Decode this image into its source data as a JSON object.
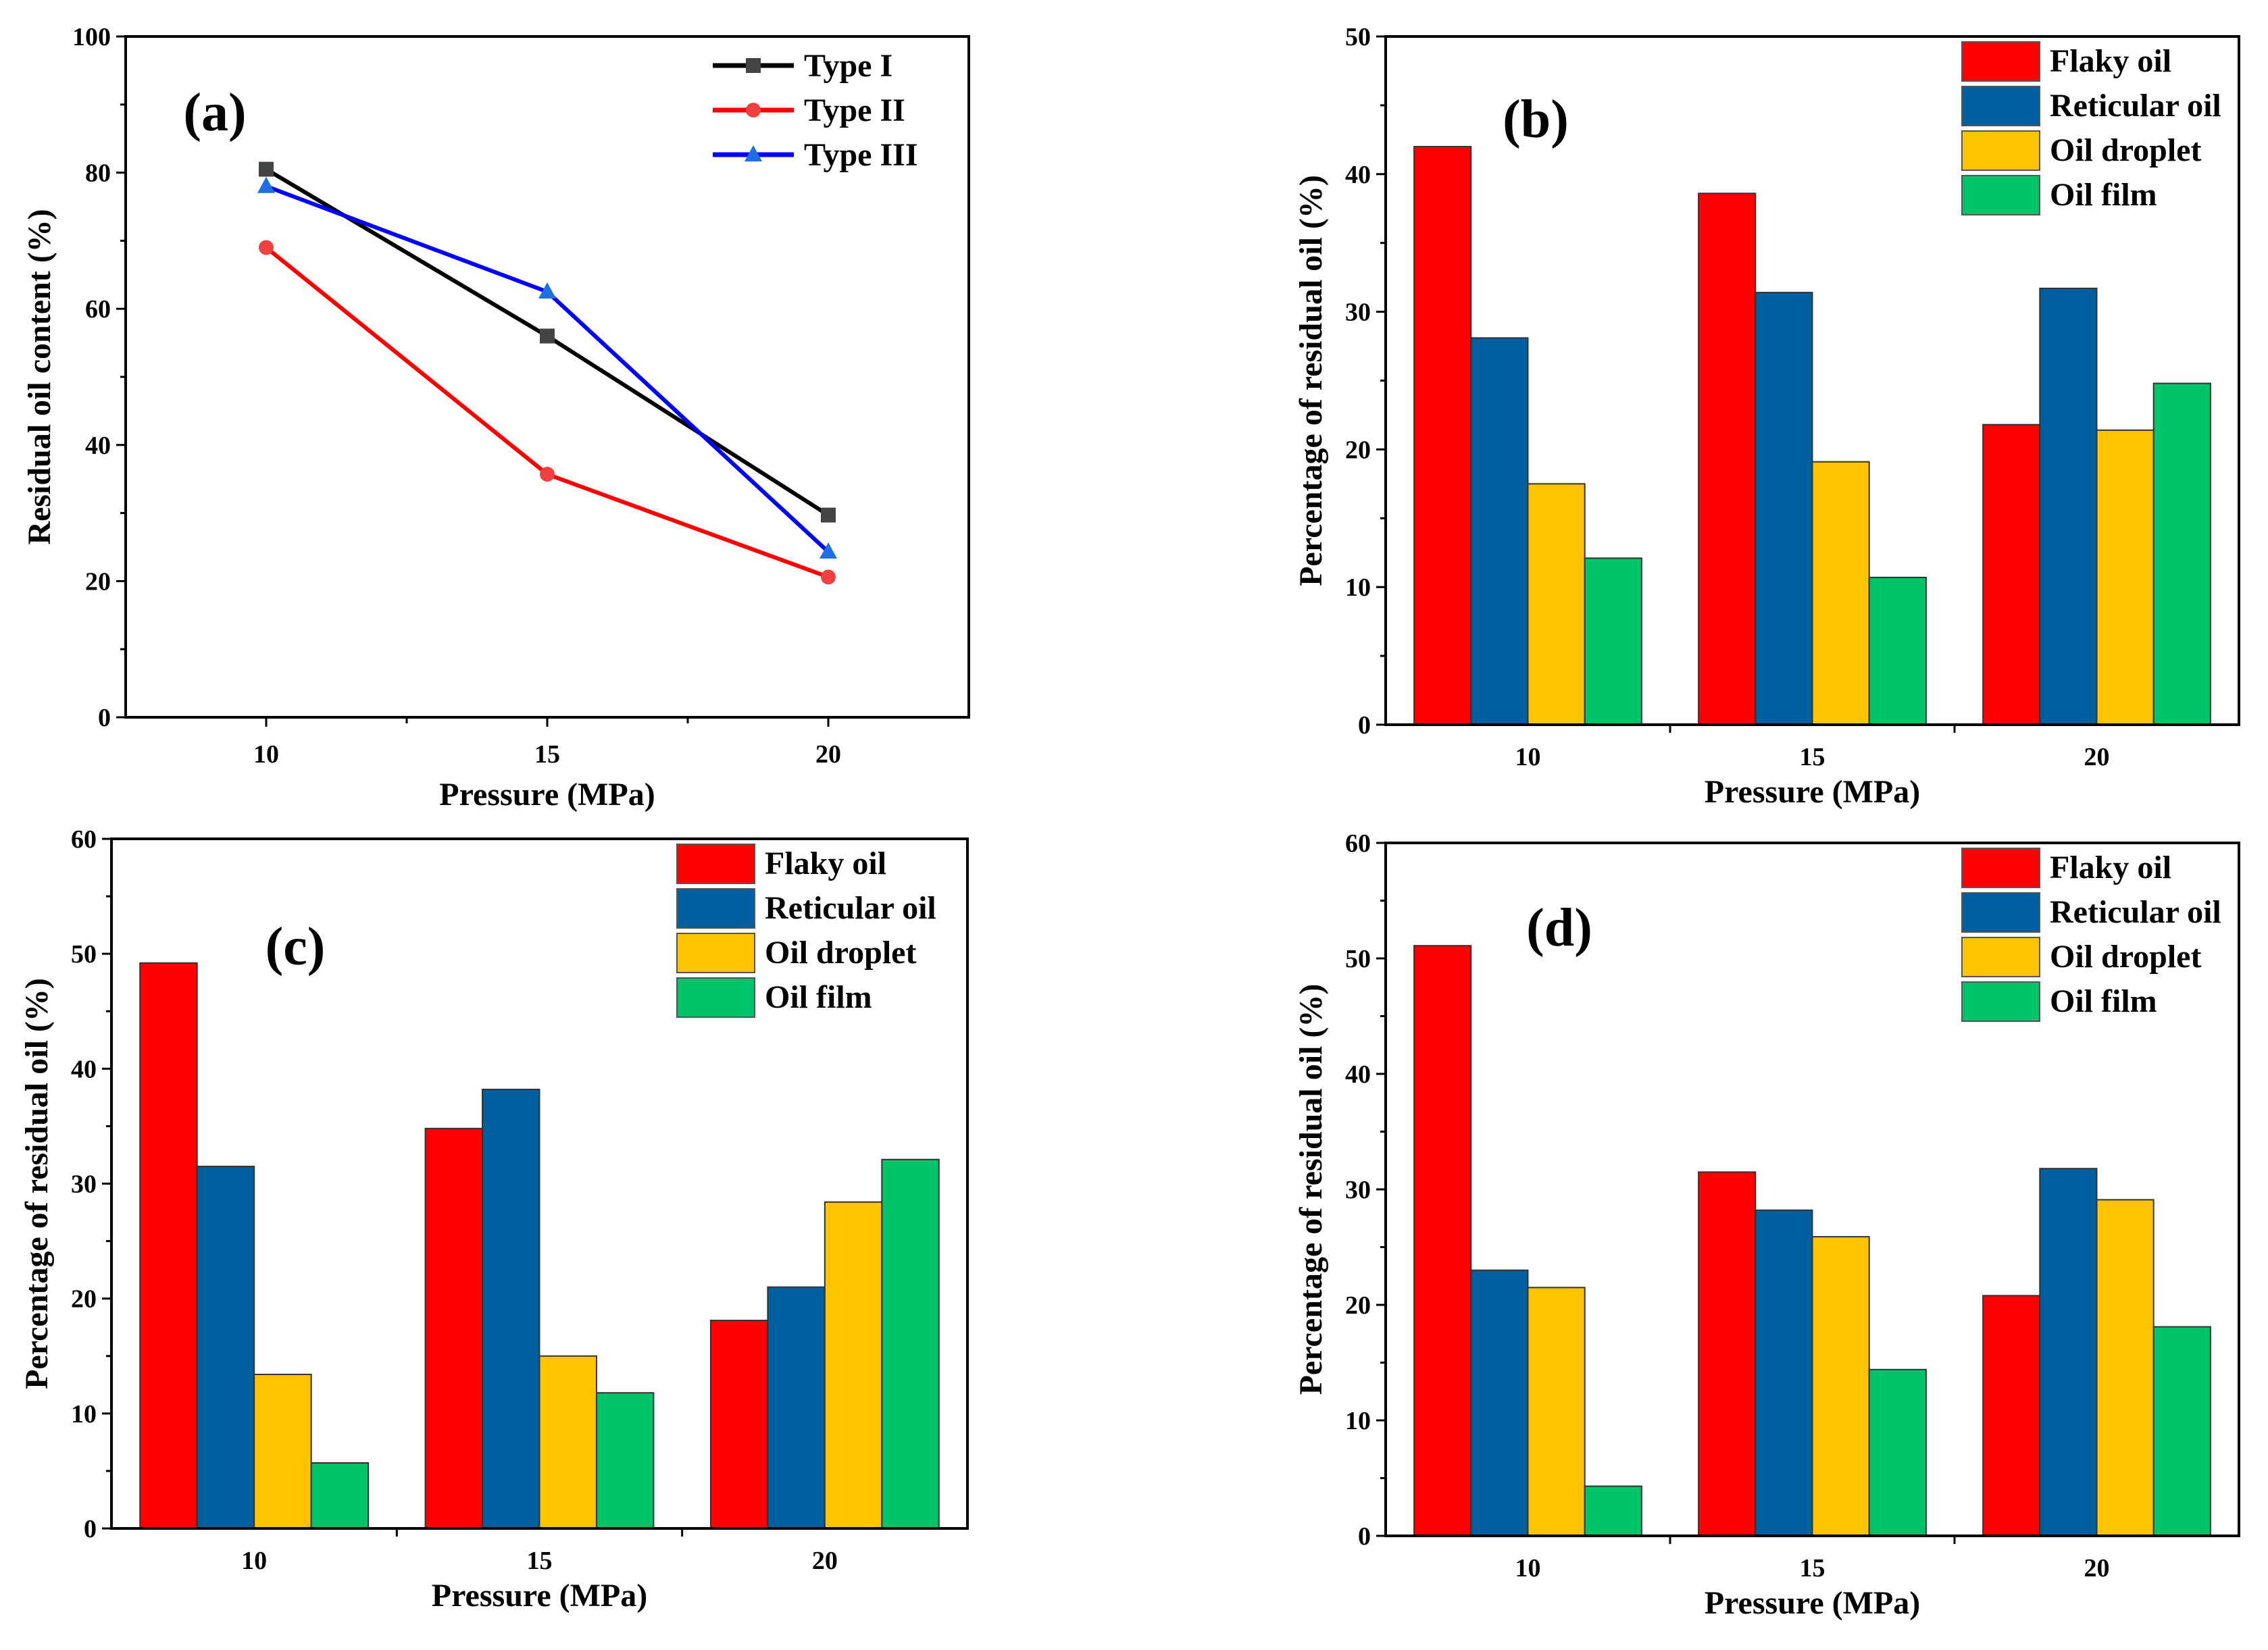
{
  "colors": {
    "type1": "#000000",
    "type1_marker": "#444444",
    "type2": "#ff0000",
    "type2_marker": "#f04040",
    "type3": "#0000ff",
    "type3_marker": "#1f6fe0",
    "flaky": "#ff0000",
    "reticular": "#005f9f",
    "droplet": "#ffc400",
    "film": "#00c46a"
  },
  "chart_data": [
    {
      "panel_label": "(a)",
      "type": "line",
      "xlabel": "Pressure (MPa)",
      "ylabel": "Residual oil content (%)",
      "x": [
        10,
        15,
        20
      ],
      "xlim": [
        7.5,
        22.5
      ],
      "ylim": [
        0,
        100
      ],
      "xticks": [
        10,
        15,
        20
      ],
      "yticks": [
        0,
        20,
        40,
        60,
        80,
        100
      ],
      "legend_position": "top-right",
      "grid": false,
      "series": [
        {
          "name": "Type I",
          "marker": "square",
          "color_key": "type1",
          "values": [
            80.5,
            56.0,
            29.7
          ]
        },
        {
          "name": "Type II",
          "marker": "circle",
          "color_key": "type2",
          "values": [
            69.0,
            35.7,
            20.6
          ]
        },
        {
          "name": "Type III",
          "marker": "triangle",
          "color_key": "type3",
          "values": [
            78.0,
            62.5,
            24.3
          ]
        }
      ]
    },
    {
      "panel_label": "(b)",
      "type": "bar",
      "xlabel": "Pressure (MPa)",
      "ylabel": "Percentage of residual oil (%)",
      "categories": [
        "10",
        "15",
        "20"
      ],
      "ylim": [
        0,
        50
      ],
      "yticks": [
        0,
        10,
        20,
        30,
        40,
        50
      ],
      "legend_position": "top-right",
      "grid": false,
      "series": [
        {
          "name": "Flaky oil",
          "color_key": "flaky",
          "values": [
            42.0,
            38.6,
            21.8
          ]
        },
        {
          "name": "Reticular oil",
          "color_key": "reticular",
          "values": [
            28.1,
            31.4,
            31.7
          ]
        },
        {
          "name": "Oil droplet",
          "color_key": "droplet",
          "values": [
            17.5,
            19.1,
            21.4
          ]
        },
        {
          "name": "Oil film",
          "color_key": "film",
          "values": [
            12.1,
            10.7,
            24.8
          ]
        }
      ]
    },
    {
      "panel_label": "(c)",
      "type": "bar",
      "xlabel": "Pressure (MPa)",
      "ylabel": "Percentage of residual oil (%)",
      "categories": [
        "10",
        "15",
        "20"
      ],
      "ylim": [
        0,
        60
      ],
      "yticks": [
        0,
        10,
        20,
        30,
        40,
        50,
        60
      ],
      "legend_position": "top-right",
      "grid": false,
      "series": [
        {
          "name": "Flaky oil",
          "color_key": "flaky",
          "values": [
            49.2,
            34.8,
            18.1
          ]
        },
        {
          "name": "Reticular oil",
          "color_key": "reticular",
          "values": [
            31.5,
            38.2,
            21.0
          ]
        },
        {
          "name": "Oil droplet",
          "color_key": "droplet",
          "values": [
            13.4,
            15.0,
            28.4
          ]
        },
        {
          "name": "Oil film",
          "color_key": "film",
          "values": [
            5.7,
            11.8,
            32.1
          ]
        }
      ]
    },
    {
      "panel_label": "(d)",
      "type": "bar",
      "xlabel": "Pressure (MPa)",
      "ylabel": "Percentage of residual oil (%)",
      "categories": [
        "10",
        "15",
        "20"
      ],
      "ylim": [
        0,
        60
      ],
      "yticks": [
        0,
        10,
        20,
        30,
        40,
        50,
        60
      ],
      "legend_position": "top-right",
      "grid": false,
      "series": [
        {
          "name": "Flaky oil",
          "color_key": "flaky",
          "values": [
            51.1,
            31.5,
            20.8
          ]
        },
        {
          "name": "Reticular oil",
          "color_key": "reticular",
          "values": [
            23.0,
            28.2,
            31.8
          ]
        },
        {
          "name": "Oil droplet",
          "color_key": "droplet",
          "values": [
            21.5,
            25.9,
            29.1
          ]
        },
        {
          "name": "Oil film",
          "color_key": "film",
          "values": [
            4.3,
            14.4,
            18.1
          ]
        }
      ]
    }
  ]
}
